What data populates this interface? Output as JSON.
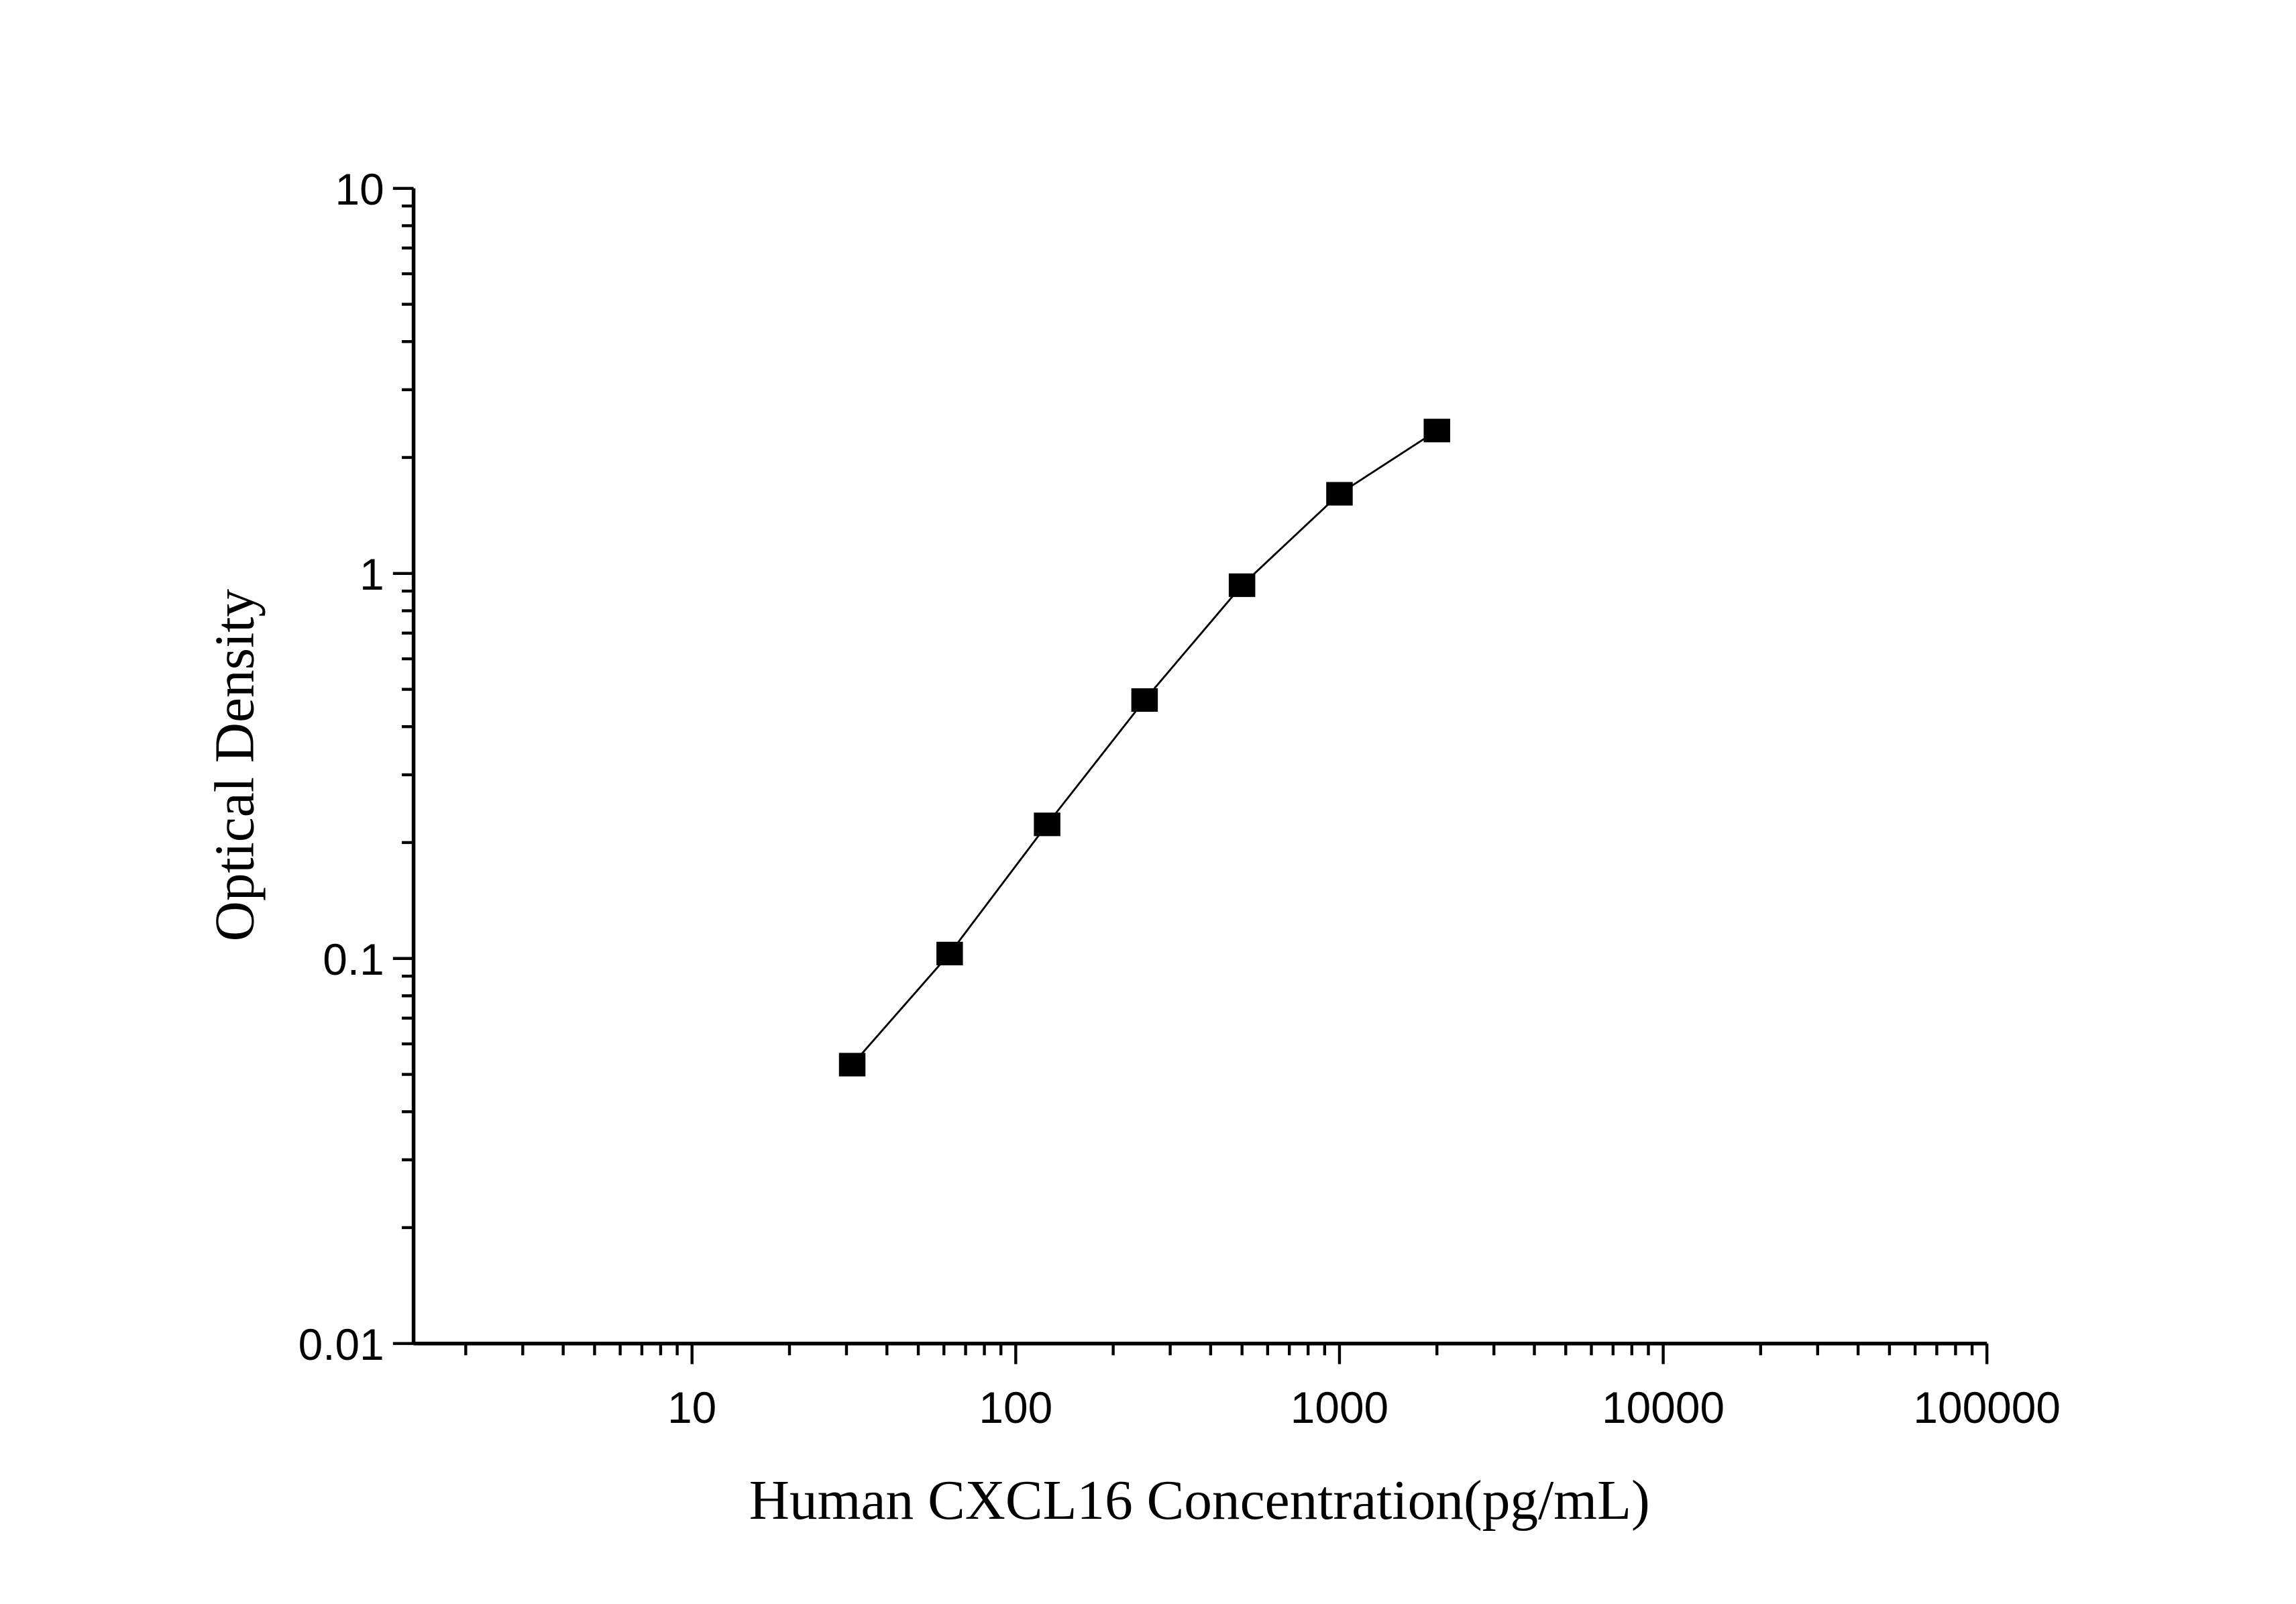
{
  "chart_data": {
    "type": "line",
    "title": "",
    "xlabel": "Human CXCL16 Concentration(pg/mL)",
    "ylabel": "Optical Density",
    "x_scale": "log",
    "y_scale": "log",
    "xlim": [
      1.38,
      100000
    ],
    "ylim": [
      0.01,
      10
    ],
    "x_ticks": [
      10,
      100,
      1000,
      10000,
      100000
    ],
    "x_tick_labels": [
      "10",
      "100",
      "1000",
      "10000",
      "100000"
    ],
    "y_ticks": [
      0.01,
      0.1,
      1,
      10
    ],
    "y_tick_labels": [
      "0.01",
      "0.1",
      "1",
      "10"
    ],
    "grid": false,
    "marker": "square",
    "color": "#000000",
    "series": [
      {
        "x": [
          31.25,
          62.5,
          125,
          250,
          500,
          1000,
          2000
        ],
        "y": [
          0.053,
          0.103,
          0.223,
          0.469,
          0.932,
          1.61,
          2.35
        ]
      }
    ]
  }
}
